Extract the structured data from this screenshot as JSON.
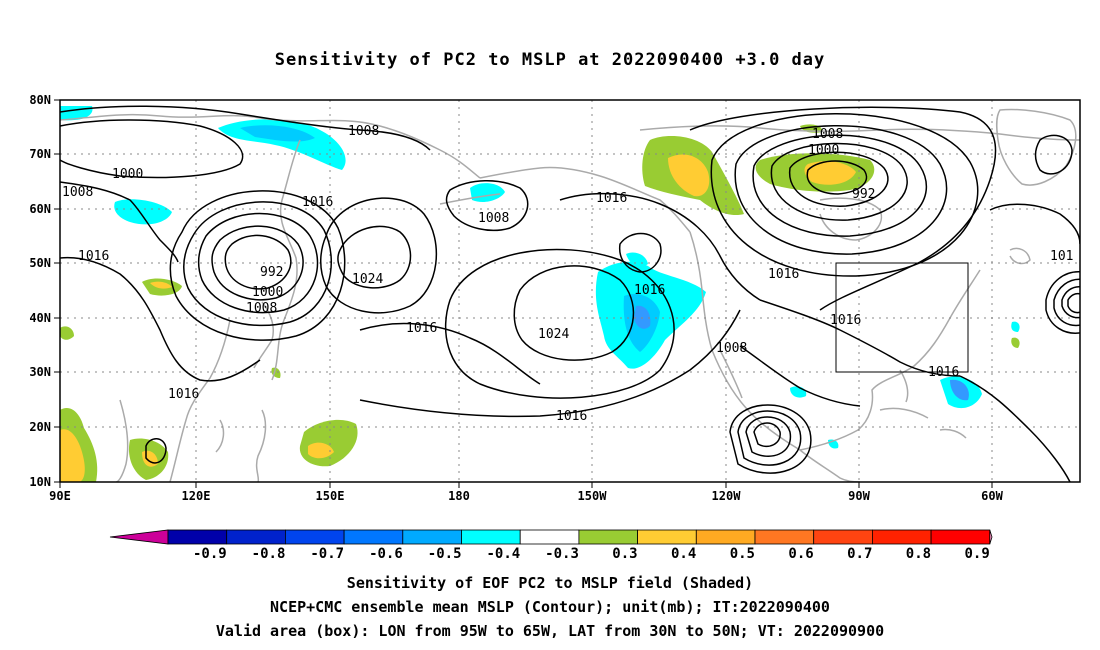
{
  "title": "Sensitivity of PC2 to MSLP at 2022090400 +3.0 day",
  "map": {
    "lon_labels": [
      "90E",
      "120E",
      "150E",
      "180",
      "150W",
      "120W",
      "90W",
      "60W"
    ],
    "lat_labels": [
      "10N",
      "20N",
      "30N",
      "40N",
      "50N",
      "60N",
      "70N",
      "80N"
    ],
    "contour_labels": [
      {
        "text": "1008"
      },
      {
        "text": "1000"
      },
      {
        "text": "1008"
      },
      {
        "text": "1016"
      },
      {
        "text": "1016"
      },
      {
        "text": "992"
      },
      {
        "text": "1000"
      },
      {
        "text": "1008"
      },
      {
        "text": "1024"
      },
      {
        "text": "1016"
      },
      {
        "text": "1008"
      },
      {
        "text": "1016"
      },
      {
        "text": "1024"
      },
      {
        "text": "1016"
      },
      {
        "text": "1016"
      },
      {
        "text": "1008"
      },
      {
        "text": "1000"
      },
      {
        "text": "992"
      },
      {
        "text": "1016"
      },
      {
        "text": "1016"
      },
      {
        "text": "1008"
      },
      {
        "text": "1016"
      },
      {
        "text": "1016"
      },
      {
        "text": "101"
      }
    ],
    "colors": {
      "land": "#aaaaaa",
      "contour": "#000000",
      "grid": "#888888",
      "pos_03": "#99cc33",
      "pos_04": "#ffcc33",
      "neg_03": "#00ffff",
      "neg_04": "#00ccff",
      "neg_05": "#3399ff",
      "neg_06": "#0066ff"
    }
  },
  "colorbar": {
    "labels": [
      "-0.9",
      "-0.8",
      "-0.7",
      "-0.6",
      "-0.5",
      "-0.4",
      "-0.3",
      "0.3",
      "0.4",
      "0.5",
      "0.6",
      "0.7",
      "0.8",
      "0.9"
    ],
    "colors": [
      "#0000aa",
      "#0022cc",
      "#0044ee",
      "#0077ff",
      "#00aaff",
      "#00ffff",
      "#ffffff",
      "#99cc33",
      "#ffcc33",
      "#ffaa22",
      "#ff7722",
      "#ff4411",
      "#ff2200",
      "#ff0000"
    ],
    "left_tip_color": "#cc0099",
    "right_tip_color": "#ff99cc"
  },
  "footer": {
    "line1": "Sensitivity of EOF PC2 to MSLP field (Shaded)",
    "line2": "NCEP+CMC ensemble mean MSLP (Contour); unit(mb); IT:2022090400",
    "line3": "Valid area (box): LON from 95W to 65W, LAT from 30N to 50N; VT: 2022090900"
  }
}
